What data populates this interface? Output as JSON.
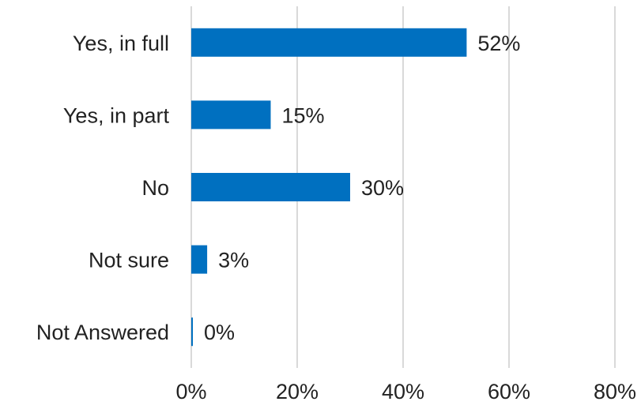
{
  "chart_data": {
    "type": "bar",
    "orientation": "horizontal",
    "categories": [
      "Yes, in full",
      "Yes, in part",
      "No",
      "Not sure",
      "Not Answered"
    ],
    "values": [
      52,
      15,
      30,
      3,
      0
    ],
    "value_labels": [
      "52%",
      "15%",
      "30%",
      "3%",
      "0%"
    ],
    "xlim": [
      0,
      80
    ],
    "x_ticks": [
      0,
      20,
      40,
      60,
      80
    ],
    "x_tick_labels": [
      "0%",
      "20%",
      "40%",
      "60%",
      "80%"
    ],
    "grid": "vertical",
    "bar_color": "#0070c0"
  }
}
